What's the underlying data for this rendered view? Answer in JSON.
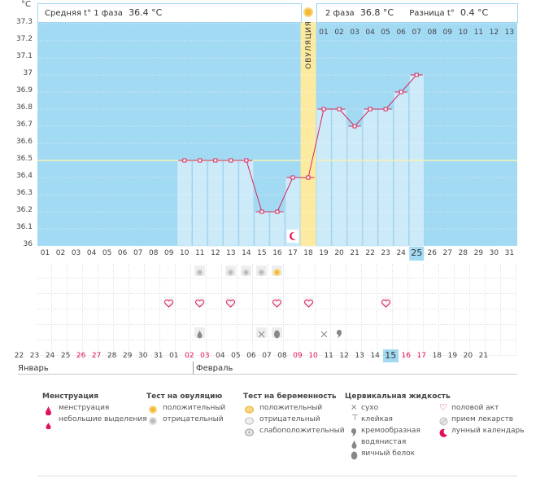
{
  "header": {
    "phase1_label": "Средняя t° 1 фаза",
    "phase1_value": "36.4 °С",
    "phase2_label": "2 фаза",
    "phase2_value": "36.8 °С",
    "diff_label": "Разница t°",
    "diff_value": "0.4 °С"
  },
  "unit": "°С",
  "ovulation_label": "ОВУЛЯЦИЯ",
  "colors": {
    "sky": "#a3daf3",
    "bar": "#cdeaf9",
    "ovulation": "#fdeaa1",
    "line": "#d4285f",
    "coverline": "#f7f1b4",
    "accent_red": "#e0115f"
  },
  "chart_data": {
    "type": "line",
    "ylim": [
      36,
      37.3
    ],
    "yticks": [
      "37.3",
      "37.2",
      "37.1",
      "37",
      "36.9",
      "36.8",
      "36.7",
      "36.6",
      "36.5",
      "36.4",
      "36.3",
      "36.2",
      "36.1",
      "36"
    ],
    "coverline": 36.5,
    "cycle_days": [
      "01",
      "02",
      "03",
      "04",
      "05",
      "06",
      "07",
      "08",
      "09",
      "10",
      "11",
      "12",
      "13",
      "14",
      "15",
      "16",
      "17",
      "18",
      "19",
      "20",
      "21",
      "22",
      "23",
      "24",
      "25",
      "26",
      "27",
      "28",
      "29",
      "30",
      "31"
    ],
    "x": [
      10,
      11,
      12,
      13,
      14,
      15,
      16,
      17,
      18,
      19,
      20,
      21,
      22,
      23,
      24,
      25
    ],
    "values": [
      36.5,
      36.5,
      36.5,
      36.5,
      36.5,
      36.2,
      36.2,
      36.4,
      36.4,
      36.8,
      36.8,
      36.7,
      36.8,
      36.8,
      36.9,
      37.0
    ],
    "ovulation_day": 18,
    "current_day": 25,
    "phase2_days": [
      "01",
      "02",
      "03",
      "04",
      "05",
      "06",
      "07",
      "08",
      "09",
      "10",
      "11",
      "12",
      "13"
    ]
  },
  "calendar": {
    "dates": [
      "22",
      "23",
      "24",
      "25",
      "26",
      "27",
      "28",
      "29",
      "30",
      "31",
      "01",
      "02",
      "03",
      "04",
      "05",
      "06",
      "07",
      "08",
      "09",
      "10",
      "11",
      "12",
      "13",
      "14",
      "15",
      "16",
      "17",
      "18",
      "19",
      "20",
      "21"
    ],
    "red_dates": [
      "26",
      "27",
      "02",
      "03",
      "09",
      "10",
      "16",
      "17"
    ],
    "highlight": "15",
    "month1": "Январь",
    "month2": "Февраль"
  },
  "legend": {
    "menstruation": {
      "title": "Менструация",
      "items": [
        "менструация",
        "небольшие выделения"
      ]
    },
    "ovulation_test": {
      "title": "Тест на овуляцию",
      "items": [
        "положительный",
        "отрицательный"
      ]
    },
    "pregnancy_test": {
      "title": "Тест на беременность",
      "items": [
        "положительный",
        "отрицательный",
        "слабоположительный"
      ]
    },
    "cervical": {
      "title": "Цервикальная жидкость",
      "items": [
        "сухо",
        "клейкая",
        "кремообразная",
        "водянистая",
        "яичный белок"
      ]
    },
    "other": {
      "items": [
        "половой акт",
        "прием лекарств",
        "лунный календарь"
      ]
    }
  }
}
